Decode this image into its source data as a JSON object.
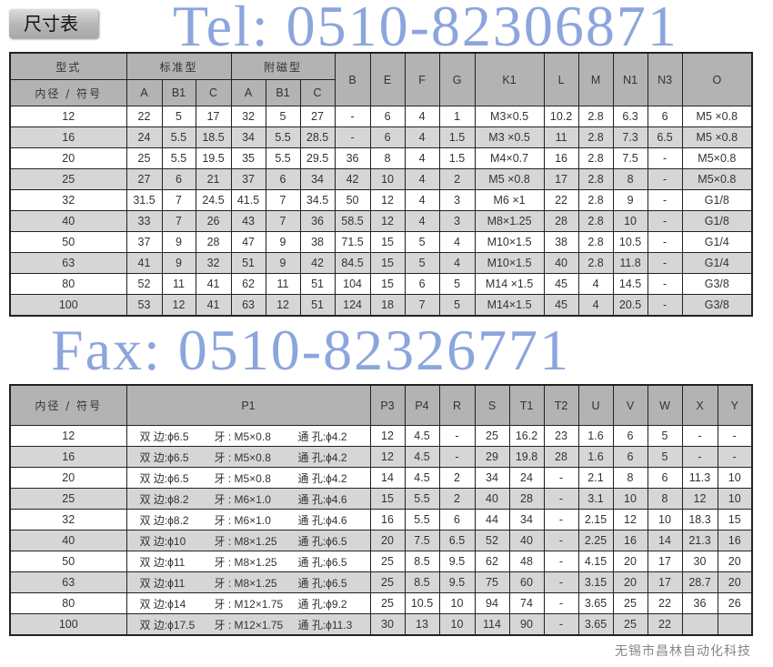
{
  "title": "尺寸表",
  "table1": {
    "header_row1": {
      "model": "型式",
      "standard": "标准型",
      "magnetic": "附磁型"
    },
    "header_row2": {
      "bore": "内径 / 符号",
      "cols": [
        "A",
        "B1",
        "C",
        "A",
        "B1",
        "C"
      ]
    },
    "right_headers": [
      "B",
      "E",
      "F",
      "G",
      "K1",
      "L",
      "M",
      "N1",
      "N3",
      "O"
    ],
    "rows": [
      [
        "12",
        "22",
        "5",
        "17",
        "32",
        "5",
        "27",
        "-",
        "6",
        "4",
        "1",
        "M3×0.5",
        "10.2",
        "2.8",
        "6.3",
        "6",
        "M5 ×0.8"
      ],
      [
        "16",
        "24",
        "5.5",
        "18.5",
        "34",
        "5.5",
        "28.5",
        "-",
        "6",
        "4",
        "1.5",
        "M3 ×0.5",
        "11",
        "2.8",
        "7.3",
        "6.5",
        "M5 ×0.8"
      ],
      [
        "20",
        "25",
        "5.5",
        "19.5",
        "35",
        "5.5",
        "29.5",
        "36",
        "8",
        "4",
        "1.5",
        "M4×0.7",
        "16",
        "2.8",
        "7.5",
        "-",
        "M5×0.8"
      ],
      [
        "25",
        "27",
        "6",
        "21",
        "37",
        "6",
        "34",
        "42",
        "10",
        "4",
        "2",
        "M5 ×0.8",
        "17",
        "2.8",
        "8",
        "-",
        "M5×0.8"
      ],
      [
        "32",
        "31.5",
        "7",
        "24.5",
        "41.5",
        "7",
        "34.5",
        "50",
        "12",
        "4",
        "3",
        "M6 ×1",
        "22",
        "2.8",
        "9",
        "-",
        "G1/8"
      ],
      [
        "40",
        "33",
        "7",
        "26",
        "43",
        "7",
        "36",
        "58.5",
        "12",
        "4",
        "3",
        "M8×1.25",
        "28",
        "2.8",
        "10",
        "-",
        "G1/8"
      ],
      [
        "50",
        "37",
        "9",
        "28",
        "47",
        "9",
        "38",
        "71.5",
        "15",
        "5",
        "4",
        "M10×1.5",
        "38",
        "2.8",
        "10.5",
        "-",
        "G1/4"
      ],
      [
        "63",
        "41",
        "9",
        "32",
        "51",
        "9",
        "42",
        "84.5",
        "15",
        "5",
        "4",
        "M10×1.5",
        "40",
        "2.8",
        "11.8",
        "-",
        "G1/4"
      ],
      [
        "80",
        "52",
        "11",
        "41",
        "62",
        "11",
        "51",
        "104",
        "15",
        "6",
        "5",
        "M14 ×1.5",
        "45",
        "4",
        "14.5",
        "-",
        "G3/8"
      ],
      [
        "100",
        "53",
        "12",
        "41",
        "63",
        "12",
        "51",
        "124",
        "18",
        "7",
        "5",
        "M14×1.5",
        "45",
        "4",
        "20.5",
        "-",
        "G3/8"
      ]
    ]
  },
  "table2": {
    "headers": [
      "内径 / 符号",
      "P1",
      "P3",
      "P4",
      "R",
      "S",
      "T1",
      "T2",
      "U",
      "V",
      "W",
      "X",
      "Y"
    ],
    "rows": [
      {
        "bore": "12",
        "p1": [
          "双 边:ϕ6.5",
          "牙 : M5×0.8",
          "通 孔:ϕ4.2"
        ],
        "vals": [
          "12",
          "4.5",
          "-",
          "25",
          "16.2",
          "23",
          "1.6",
          "6",
          "5",
          "-",
          "-"
        ]
      },
      {
        "bore": "16",
        "p1": [
          "双 边:ϕ6.5",
          "牙 : M5×0.8",
          "通 孔:ϕ4.2"
        ],
        "vals": [
          "12",
          "4.5",
          "-",
          "29",
          "19.8",
          "28",
          "1.6",
          "6",
          "5",
          "-",
          "-"
        ]
      },
      {
        "bore": "20",
        "p1": [
          "双 边:ϕ6.5",
          "牙 : M5×0.8",
          "通 孔:ϕ4.2"
        ],
        "vals": [
          "14",
          "4.5",
          "2",
          "34",
          "24",
          "-",
          "2.1",
          "8",
          "6",
          "11.3",
          "10"
        ]
      },
      {
        "bore": "25",
        "p1": [
          "双 边:ϕ8.2",
          "牙 : M6×1.0",
          "通 孔:ϕ4.6"
        ],
        "vals": [
          "15",
          "5.5",
          "2",
          "40",
          "28",
          "-",
          "3.1",
          "10",
          "8",
          "12",
          "10"
        ]
      },
      {
        "bore": "32",
        "p1": [
          "双 边:ϕ8.2",
          "牙 : M6×1.0",
          "通 孔:ϕ4.6"
        ],
        "vals": [
          "16",
          "5.5",
          "6",
          "44",
          "34",
          "-",
          "2.15",
          "12",
          "10",
          "18.3",
          "15"
        ]
      },
      {
        "bore": "40",
        "p1": [
          "双 边:ϕ10",
          "牙 : M8×1.25",
          "通 孔:ϕ6.5"
        ],
        "vals": [
          "20",
          "7.5",
          "6.5",
          "52",
          "40",
          "-",
          "2.25",
          "16",
          "14",
          "21.3",
          "16"
        ]
      },
      {
        "bore": "50",
        "p1": [
          "双 边:ϕ11",
          "牙 : M8×1.25",
          "通 孔:ϕ6.5"
        ],
        "vals": [
          "25",
          "8.5",
          "9.5",
          "62",
          "48",
          "-",
          "4.15",
          "20",
          "17",
          "30",
          "20"
        ]
      },
      {
        "bore": "63",
        "p1": [
          "双 边:ϕ11",
          "牙 : M8×1.25",
          "通 孔:ϕ6.5"
        ],
        "vals": [
          "25",
          "8.5",
          "9.5",
          "75",
          "60",
          "-",
          "3.15",
          "20",
          "17",
          "28.7",
          "20"
        ]
      },
      {
        "bore": "80",
        "p1": [
          "双 边:ϕ14",
          "牙 : M12×1.75",
          "通 孔:ϕ9.2"
        ],
        "vals": [
          "25",
          "10.5",
          "10",
          "94",
          "74",
          "-",
          "3.65",
          "25",
          "22",
          "36",
          "26"
        ]
      },
      {
        "bore": "100",
        "p1": [
          "双 边:ϕ17.5",
          "牙 : M12×1.75",
          "通 孔:ϕ11.3"
        ],
        "vals": [
          "30",
          "13",
          "10",
          "114",
          "90",
          "-",
          "3.65",
          "25",
          "22",
          "",
          ""
        ]
      }
    ]
  },
  "watermarks": {
    "tel": "Tel: 0510-82306871",
    "fax": "Fax: 0510-82326771",
    "company": "无锡市昌林自动化科技"
  },
  "colors": {
    "header_bg": "#b3b3b3",
    "alt_row_bg": "#d6d6d6",
    "watermark": "#466ec8"
  }
}
